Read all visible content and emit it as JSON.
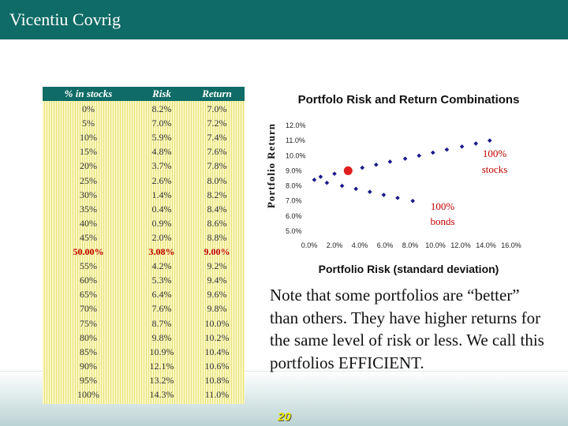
{
  "header": {
    "title": "Vicentiu Covrig"
  },
  "table": {
    "columns": [
      "% in stocks",
      "Risk",
      "Return"
    ],
    "rows": [
      [
        "0%",
        "8.2%",
        "7.0%"
      ],
      [
        "5%",
        "7.0%",
        "7.2%"
      ],
      [
        "10%",
        "5.9%",
        "7.4%"
      ],
      [
        "15%",
        "4.8%",
        "7.6%"
      ],
      [
        "20%",
        "3.7%",
        "7.8%"
      ],
      [
        "25%",
        "2.6%",
        "8.0%"
      ],
      [
        "30%",
        "1.4%",
        "8.2%"
      ],
      [
        "35%",
        "0.4%",
        "8.4%"
      ],
      [
        "40%",
        "0.9%",
        "8.6%"
      ],
      [
        "45%",
        "2.0%",
        "8.8%"
      ],
      [
        "50.00%",
        "3.08%",
        "9.00%"
      ],
      [
        "55%",
        "4.2%",
        "9.2%"
      ],
      [
        "60%",
        "5.3%",
        "9.4%"
      ],
      [
        "65%",
        "6.4%",
        "9.6%"
      ],
      [
        "70%",
        "7.6%",
        "9.8%"
      ],
      [
        "75%",
        "8.7%",
        "10.0%"
      ],
      [
        "80%",
        "9.8%",
        "10.2%"
      ],
      [
        "85%",
        "10.9%",
        "10.4%"
      ],
      [
        "90%",
        "12.1%",
        "10.6%"
      ],
      [
        "95%",
        "13.2%",
        "10.8%"
      ],
      [
        "100%",
        "14.3%",
        "11.0%"
      ]
    ],
    "highlight_row": 10,
    "highlight_color": "#c00000"
  },
  "chart_data": {
    "type": "scatter",
    "title": "Portfolo Risk and Return Combinations",
    "xlabel": "Portfolio Risk (standard deviation)",
    "ylabel": "Portfolio Return",
    "xlim": [
      0,
      16
    ],
    "ylim": [
      5,
      12
    ],
    "xticks": [
      "0.0%",
      "2.0%",
      "4.0%",
      "6.0%",
      "8.0%",
      "10.0%",
      "12.0%",
      "14.0%",
      "16.0%"
    ],
    "yticks": [
      "5.0%",
      "6.0%",
      "7.0%",
      "8.0%",
      "9.0%",
      "10.0%",
      "11.0%",
      "12.0%"
    ],
    "x": [
      8.2,
      7.0,
      5.9,
      4.8,
      3.7,
      2.6,
      1.4,
      0.4,
      0.9,
      2.0,
      4.2,
      5.3,
      6.4,
      7.6,
      8.7,
      9.8,
      10.9,
      12.1,
      13.2,
      14.3
    ],
    "y": [
      7.0,
      7.2,
      7.4,
      7.6,
      7.8,
      8.0,
      8.2,
      8.4,
      8.6,
      8.8,
      9.2,
      9.4,
      9.6,
      9.8,
      10.0,
      10.2,
      10.4,
      10.6,
      10.8,
      11.0
    ],
    "highlight_point": {
      "x": 3.08,
      "y": 9.0
    },
    "annotations": {
      "stocks": "100% stocks",
      "bonds": "100% bonds"
    },
    "point_color": "#1a1a8c",
    "highlight_color": "#e02020",
    "annotation_color": "#c00000",
    "grid": false
  },
  "note": {
    "text": "Note that some portfolios are “better” than others. They have higher returns for the same level of risk or less. We call this portfolios EFFICIENT."
  },
  "page_number": "20",
  "colors": {
    "header_bg": "#0f6b66",
    "page_number": "#e8e800"
  }
}
